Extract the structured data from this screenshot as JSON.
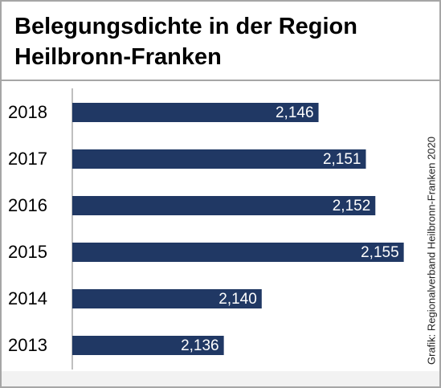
{
  "chart_data": {
    "type": "hbar",
    "title": "Belegungsdichte in der Region Heilbronn-Franken",
    "source": "Grafik: Regionalverband Heilbronn-Franken 2020",
    "categories": [
      "2018",
      "2017",
      "2016",
      "2015",
      "2014",
      "2013"
    ],
    "values": [
      2.146,
      2.151,
      2.152,
      2.155,
      2.14,
      2.136
    ],
    "value_labels": [
      "2,146",
      "2,151",
      "2,152",
      "2,155",
      "2,140",
      "2,136"
    ],
    "color": "#203864",
    "xlim": [
      2.12,
      2.16
    ]
  }
}
